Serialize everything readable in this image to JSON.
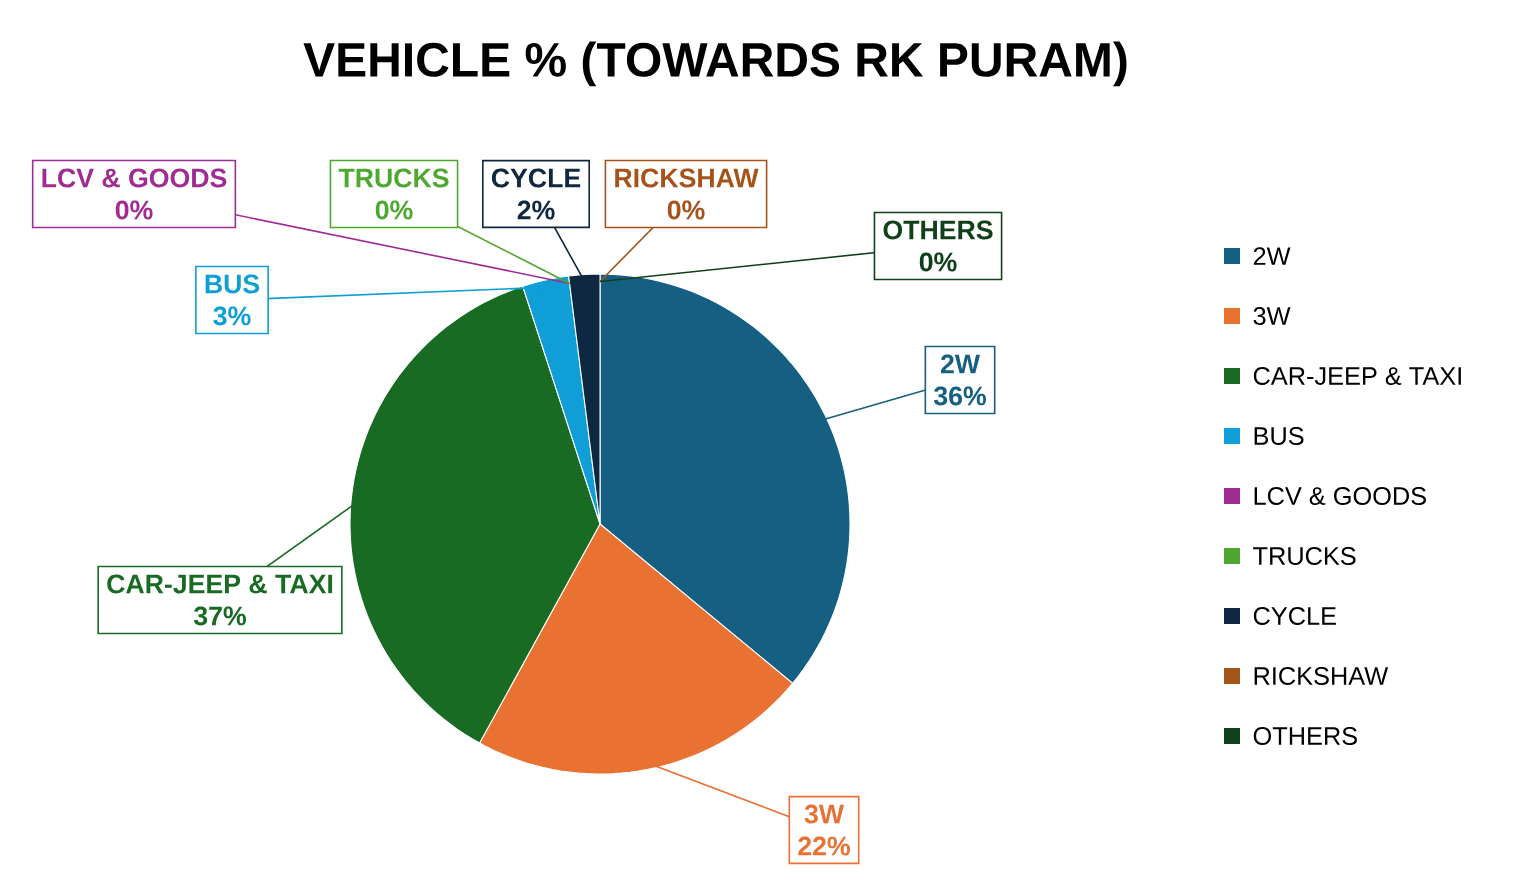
{
  "chart_data": {
    "type": "pie",
    "title": "VEHICLE % (TOWARDS RK PURAM)",
    "categories": [
      "2W",
      "3W",
      "CAR-JEEP & TAXI",
      "BUS",
      "LCV & GOODS",
      "TRUCKS",
      "CYCLE",
      "RICKSHAW",
      "OTHERS"
    ],
    "values": [
      36,
      22,
      37,
      3,
      0,
      0,
      2,
      0,
      0
    ],
    "value_labels": [
      "36%",
      "22%",
      "37%",
      "3%",
      "0%",
      "0%",
      "2%",
      "0%",
      "0%"
    ],
    "colors": [
      "#156082",
      "#e97132",
      "#196b24",
      "#0f9ed5",
      "#a02b93",
      "#4ea72e",
      "#0e2841",
      "#a5521b",
      "#10401a"
    ],
    "legend": "right"
  }
}
